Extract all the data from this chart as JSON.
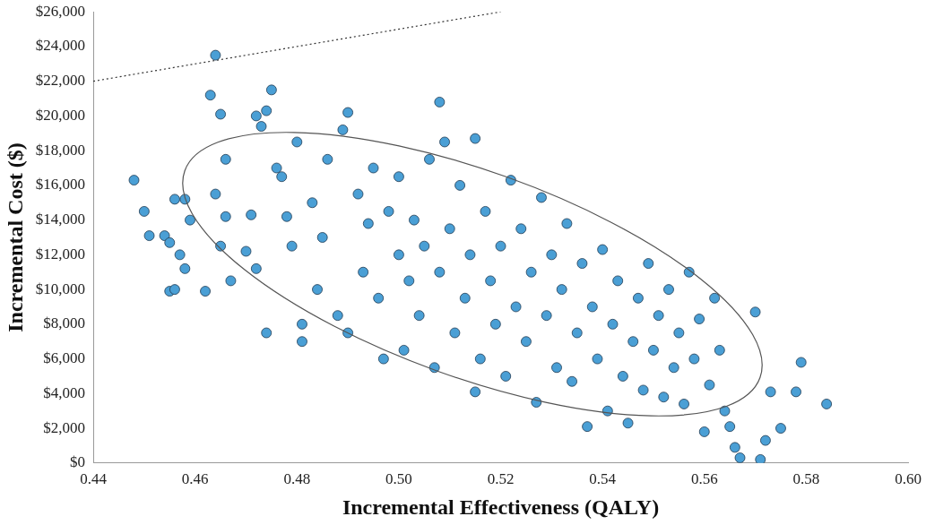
{
  "chart_data": {
    "type": "scatter",
    "xlabel": "Incremental Effectiveness (QALY)",
    "ylabel": "Incremental Cost ($)",
    "xlim": [
      0.44,
      0.6
    ],
    "xticks": [
      {
        "value": 0.44,
        "label": "0.44"
      },
      {
        "value": 0.46,
        "label": "0.46"
      },
      {
        "value": 0.48,
        "label": "0.48"
      },
      {
        "value": 0.5,
        "label": "0.50"
      },
      {
        "value": 0.52,
        "label": "0.52"
      },
      {
        "value": 0.54,
        "label": "0.54"
      },
      {
        "value": 0.56,
        "label": "0.56"
      },
      {
        "value": 0.58,
        "label": "0.58"
      },
      {
        "value": 0.6,
        "label": "0.60"
      }
    ],
    "ylim": [
      0,
      26000
    ],
    "yticks": [
      {
        "value": 0,
        "label": "$0"
      },
      {
        "value": 2000,
        "label": "$2,000"
      },
      {
        "value": 4000,
        "label": "$4,000"
      },
      {
        "value": 6000,
        "label": "$6,000"
      },
      {
        "value": 8000,
        "label": "$8,000"
      },
      {
        "value": 10000,
        "label": "$10,000"
      },
      {
        "value": 12000,
        "label": "$12,000"
      },
      {
        "value": 14000,
        "label": "$14,000"
      },
      {
        "value": 16000,
        "label": "$16,000"
      },
      {
        "value": 18000,
        "label": "$18,000"
      },
      {
        "value": 20000,
        "label": "$20,000"
      },
      {
        "value": 22000,
        "label": "$22,000"
      },
      {
        "value": 24000,
        "label": "$24,000"
      },
      {
        "value": 26000,
        "label": "$26,000"
      }
    ],
    "grid": false,
    "legend": false,
    "marker": "circle",
    "series": [
      {
        "color": "#4a9fd5",
        "x": [
          0.448,
          0.45,
          0.451,
          0.454,
          0.455,
          0.456,
          0.455,
          0.456,
          0.457,
          0.458,
          0.458,
          0.459,
          0.462,
          0.464,
          0.463,
          0.465,
          0.464,
          0.466,
          0.466,
          0.465,
          0.467,
          0.47,
          0.471,
          0.472,
          0.472,
          0.473,
          0.474,
          0.475,
          0.474,
          0.476,
          0.477,
          0.478,
          0.479,
          0.48,
          0.481,
          0.481,
          0.483,
          0.484,
          0.485,
          0.486,
          0.488,
          0.489,
          0.49,
          0.49,
          0.492,
          0.493,
          0.494,
          0.495,
          0.496,
          0.497,
          0.498,
          0.5,
          0.5,
          0.501,
          0.502,
          0.503,
          0.504,
          0.505,
          0.506,
          0.507,
          0.508,
          0.508,
          0.509,
          0.51,
          0.511,
          0.512,
          0.513,
          0.514,
          0.515,
          0.515,
          0.516,
          0.517,
          0.518,
          0.519,
          0.52,
          0.521,
          0.522,
          0.523,
          0.524,
          0.525,
          0.526,
          0.527,
          0.528,
          0.529,
          0.53,
          0.531,
          0.532,
          0.533,
          0.534,
          0.535,
          0.536,
          0.537,
          0.538,
          0.539,
          0.54,
          0.541,
          0.542,
          0.543,
          0.544,
          0.545,
          0.546,
          0.547,
          0.548,
          0.549,
          0.55,
          0.551,
          0.552,
          0.553,
          0.554,
          0.555,
          0.556,
          0.557,
          0.558,
          0.559,
          0.56,
          0.561,
          0.562,
          0.563,
          0.564,
          0.565,
          0.566,
          0.567,
          0.57,
          0.571,
          0.572,
          0.573,
          0.575,
          0.578,
          0.579,
          0.584
        ],
        "values": [
          16300,
          14500,
          13100,
          13100,
          9900,
          10000,
          12700,
          15200,
          12000,
          15200,
          11200,
          14000,
          9900,
          23500,
          21200,
          20100,
          15500,
          17500,
          14200,
          12500,
          10500,
          12200,
          14300,
          11200,
          20000,
          19400,
          20300,
          21500,
          7500,
          17000,
          16500,
          14200,
          12500,
          18500,
          7000,
          8000,
          15000,
          10000,
          13000,
          17500,
          8500,
          19200,
          20200,
          7500,
          15500,
          11000,
          13800,
          17000,
          9500,
          6000,
          14500,
          12000,
          16500,
          6500,
          10500,
          14000,
          8500,
          12500,
          17500,
          5500,
          20800,
          11000,
          18500,
          13500,
          7500,
          16000,
          9500,
          12000,
          18700,
          4100,
          6000,
          14500,
          10500,
          8000,
          12500,
          5000,
          16300,
          9000,
          13500,
          7000,
          11000,
          3500,
          15300,
          8500,
          12000,
          5500,
          10000,
          13800,
          4700,
          7500,
          11500,
          2100,
          9000,
          6000,
          12300,
          3000,
          8000,
          10500,
          5000,
          2300,
          7000,
          9500,
          4200,
          11500,
          6500,
          8500,
          3800,
          10000,
          5500,
          7500,
          3400,
          11000,
          6000,
          8300,
          1800,
          4500,
          9500,
          6500,
          3000,
          2100,
          900,
          300,
          8700,
          200,
          1300,
          4100,
          2000,
          4100,
          5800,
          3400
        ]
      },
      {
        "type": "line",
        "color": "#333333",
        "marker": "none",
        "line_style": "dotted",
        "x": [
          0.44,
          0.52
        ],
        "values": [
          22000,
          26000
        ]
      }
    ]
  }
}
